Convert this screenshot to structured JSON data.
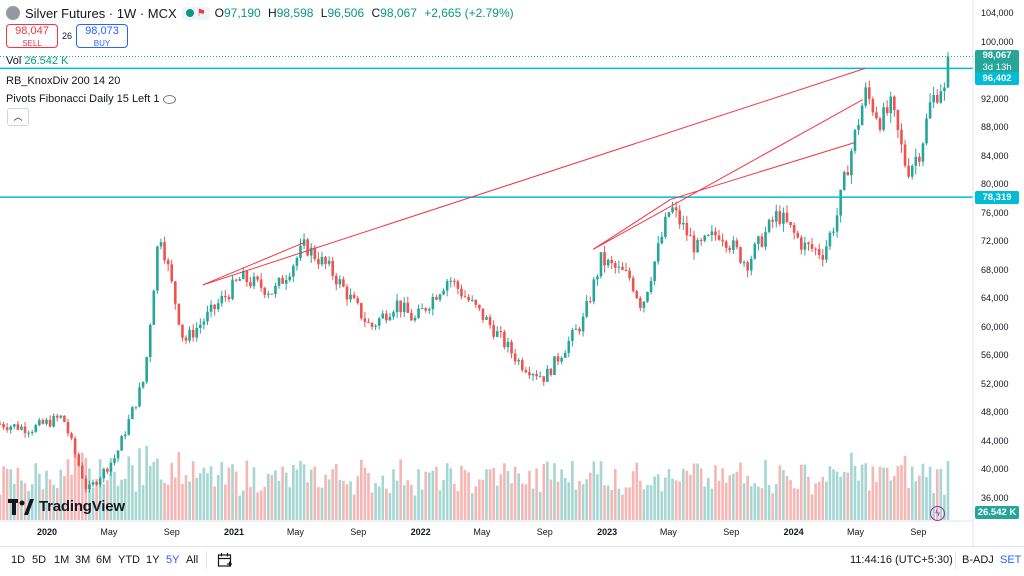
{
  "header": {
    "title": "Silver Futures · 1W · MCX",
    "ohlc": [
      {
        "k": "O",
        "v": "97,190"
      },
      {
        "k": "H",
        "v": "98,598"
      },
      {
        "k": "L",
        "v": "96,506"
      },
      {
        "k": "C",
        "v": "98,067"
      }
    ],
    "change": "+2,665 (+2.79%)",
    "sell_price": "98,047",
    "sell_label": "SELL",
    "spread": "26",
    "buy_price": "98,073",
    "buy_label": "BUY"
  },
  "indicators": {
    "vol_label": "Vol",
    "vol_value": "26.542 K",
    "knoxdiv": "RB_KnoxDiv 200 14 20",
    "pivots": "Pivots Fibonacci Daily 15 Left 1"
  },
  "price_tags": {
    "last": "98,067",
    "countdown": "3d 13h",
    "level_high": "96,402",
    "level_low": "78,319",
    "volume": "26.542 K"
  },
  "colors": {
    "up": "#26a69a",
    "down": "#ef5350",
    "level": "#00bcd4",
    "trendline": "#f23645",
    "accent": "#2962ff"
  },
  "chart_data": {
    "type": "candlestick",
    "y_ticks": [
      36000,
      40000,
      44000,
      48000,
      52000,
      56000,
      60000,
      64000,
      68000,
      72000,
      76000,
      80000,
      84000,
      88000,
      92000,
      96000,
      100000,
      104000
    ],
    "y_tick_labels": [
      "36,000",
      "40,000",
      "44,000",
      "48,000",
      "52,000",
      "56,000",
      "60,000",
      "64,000",
      "68,000",
      "72,000",
      "76,000",
      "80,000",
      "84,000",
      "88,000",
      "92,000",
      "96,000",
      "100,000",
      "104,000"
    ],
    "ylim": [
      33000,
      106000
    ],
    "x_labels": [
      "2020",
      "May",
      "Sep",
      "2021",
      "May",
      "Sep",
      "2022",
      "May",
      "Sep",
      "2023",
      "May",
      "Sep",
      "2024",
      "May",
      "Sep"
    ],
    "x_label_dates": [
      "2020-01-01",
      "2020-05-01",
      "2020-09-01",
      "2021-01-01",
      "2021-05-01",
      "2021-09-01",
      "2022-01-01",
      "2022-05-01",
      "2022-09-01",
      "2023-01-01",
      "2023-05-01",
      "2023-09-01",
      "2024-01-01",
      "2024-05-01",
      "2024-09-01"
    ],
    "xlim": [
      "2019-10-01",
      "2024-12-15"
    ],
    "key_closes": [
      {
        "date": "2019-10-01",
        "close": 46500
      },
      {
        "date": "2019-12-01",
        "close": 45800
      },
      {
        "date": "2020-02-01",
        "close": 47500
      },
      {
        "date": "2020-03-20",
        "close": 37000
      },
      {
        "date": "2020-05-15",
        "close": 42000
      },
      {
        "date": "2020-07-10",
        "close": 53000
      },
      {
        "date": "2020-08-08",
        "close": 74000
      },
      {
        "date": "2020-09-25",
        "close": 58000
      },
      {
        "date": "2020-11-15",
        "close": 62000
      },
      {
        "date": "2021-01-15",
        "close": 67000
      },
      {
        "date": "2021-03-20",
        "close": 65000
      },
      {
        "date": "2021-05-20",
        "close": 71500
      },
      {
        "date": "2021-07-10",
        "close": 68000
      },
      {
        "date": "2021-09-25",
        "close": 60000
      },
      {
        "date": "2021-11-15",
        "close": 63500
      },
      {
        "date": "2021-12-20",
        "close": 61000
      },
      {
        "date": "2022-02-25",
        "close": 67000
      },
      {
        "date": "2022-05-10",
        "close": 61000
      },
      {
        "date": "2022-07-15",
        "close": 55000
      },
      {
        "date": "2022-09-01",
        "close": 53000
      },
      {
        "date": "2022-11-15",
        "close": 61000
      },
      {
        "date": "2022-12-20",
        "close": 69500
      },
      {
        "date": "2023-02-15",
        "close": 67000
      },
      {
        "date": "2023-03-10",
        "close": 63000
      },
      {
        "date": "2023-05-05",
        "close": 77000
      },
      {
        "date": "2023-06-25",
        "close": 71000
      },
      {
        "date": "2023-08-10",
        "close": 73500
      },
      {
        "date": "2023-10-01",
        "close": 69000
      },
      {
        "date": "2023-12-01",
        "close": 76000
      },
      {
        "date": "2024-01-20",
        "close": 71500
      },
      {
        "date": "2024-02-28",
        "close": 70500
      },
      {
        "date": "2024-03-25",
        "close": 75500
      },
      {
        "date": "2024-04-15",
        "close": 82500
      },
      {
        "date": "2024-05-20",
        "close": 93000
      },
      {
        "date": "2024-06-20",
        "close": 89000
      },
      {
        "date": "2024-07-10",
        "close": 91000
      },
      {
        "date": "2024-08-10",
        "close": 82000
      },
      {
        "date": "2024-09-05",
        "close": 85000
      },
      {
        "date": "2024-09-25",
        "close": 91500
      },
      {
        "date": "2024-10-15",
        "close": 94000
      },
      {
        "date": "2024-10-25",
        "close": 92500
      },
      {
        "date": "2024-11-01",
        "close": 98067
      }
    ],
    "horizontal_levels": [
      96402,
      78319
    ],
    "last_price": 98067,
    "trendlines": [
      {
        "from": {
          "date": "2020-11-01",
          "price": 66000
        },
        "to": {
          "date": "2024-05-20",
          "price": 96402
        }
      },
      {
        "from": {
          "date": "2020-11-01",
          "price": 66000
        },
        "to": {
          "date": "2021-05-20",
          "price": 72000
        }
      },
      {
        "from": {
          "date": "2022-12-05",
          "price": 71000
        },
        "to": {
          "date": "2024-05-15",
          "price": 92000
        }
      },
      {
        "from": {
          "date": "2023-05-05",
          "price": 78000
        },
        "to": {
          "date": "2024-04-30",
          "price": 86000
        }
      },
      {
        "from": {
          "date": "2022-12-05",
          "price": 71000
        },
        "to": {
          "date": "2023-05-05",
          "price": 78000
        }
      }
    ],
    "grid": false,
    "legend": "top-left"
  },
  "bottom_bar": {
    "ranges": [
      "1D",
      "5D",
      "1M",
      "3M",
      "6M",
      "YTD",
      "1Y",
      "5Y",
      "All"
    ],
    "active": "5Y",
    "time": "11:44:16 (UTC+5:30)",
    "badj": "B-ADJ",
    "set": "SET"
  },
  "branding": {
    "logo_text": "TradingView"
  }
}
